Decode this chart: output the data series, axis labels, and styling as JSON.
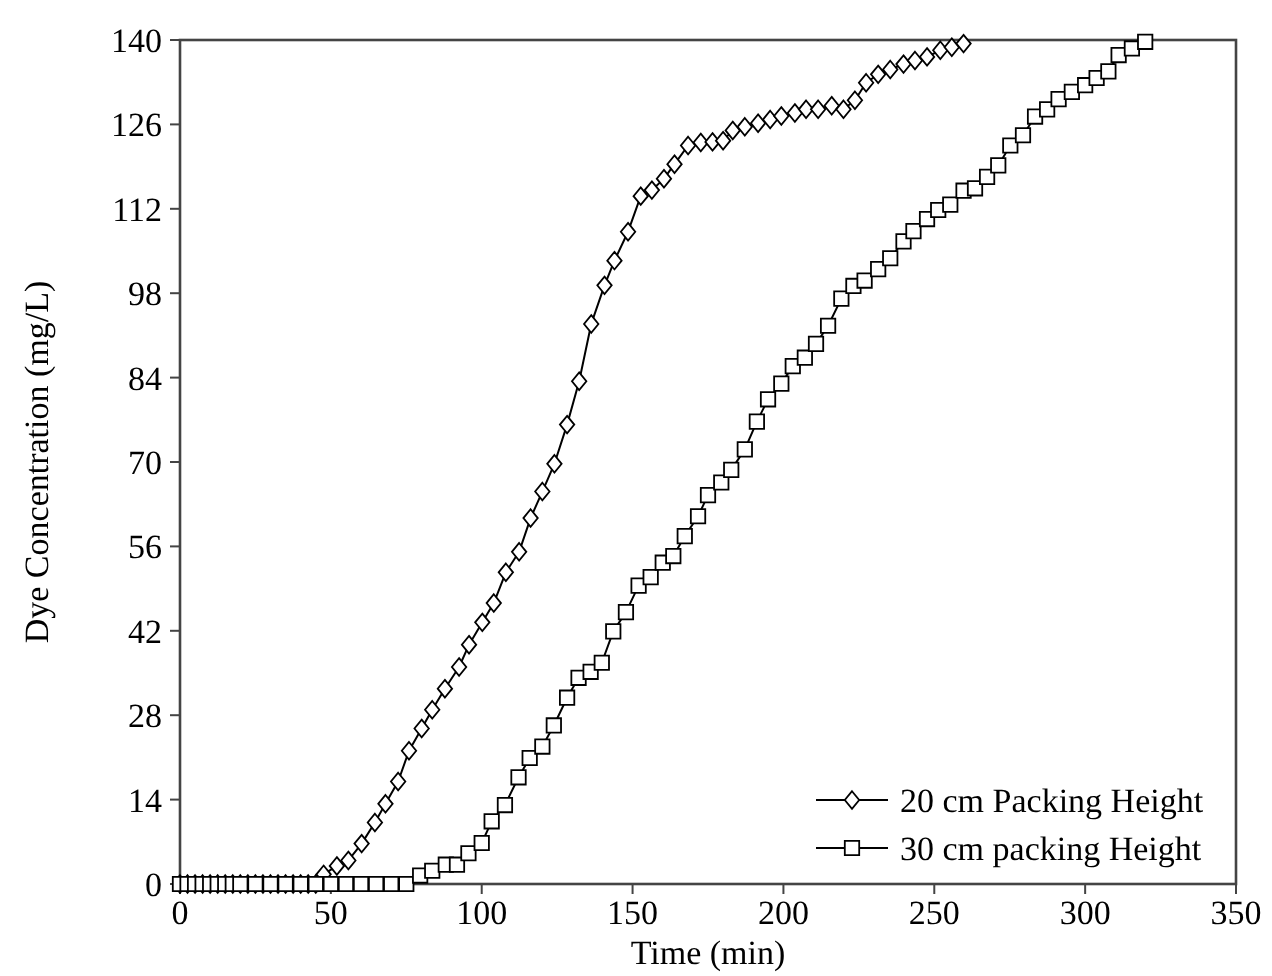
{
  "chart_data": {
    "type": "line",
    "xlabel": "Time (min)",
    "ylabel": "Dye Concentration (mg/L)",
    "xlim": [
      0,
      350
    ],
    "xticks": [
      0,
      50,
      100,
      150,
      200,
      250,
      300,
      350
    ],
    "ylim": [
      0,
      140
    ],
    "yticks": [
      0,
      14,
      28,
      42,
      56,
      70,
      84,
      98,
      112,
      126,
      140
    ],
    "grid": false,
    "legend": "bottom right",
    "line_style": "solid",
    "series": [
      {
        "name": "20 cm Packing Height",
        "color": "#000000",
        "marker": "diamond",
        "x": [
          0,
          2.5,
          5,
          7.5,
          10,
          12.5,
          15,
          17.5,
          20,
          22.5,
          25,
          27.5,
          30,
          32.5,
          35,
          37.5,
          40,
          42.5,
          45,
          47.6,
          52,
          55.8,
          60.2,
          64.6,
          68.1,
          72.3,
          75.9,
          80.1,
          83.6,
          87.8,
          92.5,
          95.8,
          100.2,
          104,
          108,
          112.4,
          116.2,
          120.1,
          124.1,
          128.3,
          132.3,
          136.3,
          140.7,
          144,
          148.5,
          152.7,
          156.4,
          160.4,
          163.9,
          168.4,
          172.6,
          176.5,
          180,
          183.2,
          187.2,
          191.6,
          195.6,
          199.3,
          203.8,
          207.5,
          211.5,
          216,
          219.9,
          223.7,
          227.4,
          231.4,
          235.4,
          239.8,
          243.6,
          247.6,
          252,
          255.8,
          259.7
        ],
        "values": [
          0,
          0,
          0,
          0,
          0,
          0,
          0,
          0,
          0,
          0,
          0,
          0,
          0,
          0,
          0,
          0,
          0,
          0,
          0,
          1.6,
          3,
          3.9,
          6.7,
          10.2,
          13.3,
          17,
          22.1,
          25.8,
          28.9,
          32.4,
          36,
          39.7,
          43.4,
          46.6,
          51.7,
          55.1,
          60.7,
          65.1,
          69.7,
          76.2,
          83.4,
          92.9,
          99.3,
          103.4,
          108.2,
          114.1,
          115.1,
          117,
          119.4,
          122.5,
          123,
          123.1,
          123.3,
          125,
          125.6,
          126.2,
          126.8,
          127.4,
          127.9,
          128.5,
          128.5,
          129.1,
          128.5,
          130,
          132.9,
          134.3,
          135.1,
          136,
          136.6,
          137.2,
          138.3,
          138.8,
          139.4
        ]
      },
      {
        "name": "30 cm packing Height",
        "color": "#000000",
        "marker": "square",
        "x": [
          0,
          2.5,
          5,
          7.5,
          10,
          12.5,
          15,
          17.5,
          20,
          25,
          30,
          35,
          40,
          45,
          50,
          55,
          60,
          65,
          70,
          75,
          79.6,
          83.6,
          88.1,
          91.8,
          95.6,
          100,
          103.3,
          107.7,
          112.2,
          115.9,
          120.1,
          123.9,
          128.3,
          132.1,
          136.1,
          139.8,
          143.6,
          147.8,
          152,
          156,
          160,
          163.5,
          167.3,
          171.7,
          175,
          179.4,
          182.7,
          187.2,
          191.2,
          194.9,
          199.3,
          203.1,
          207.1,
          210.8,
          214.8,
          219.2,
          223.2,
          226.9,
          231.4,
          235.4,
          239.8,
          243.1,
          247.6,
          251.3,
          255.3,
          259.7,
          263.5,
          267.5,
          271.2,
          275.2,
          279.4,
          283.4,
          287.4,
          291.2,
          295.6,
          300,
          303.8,
          307.7,
          311.1,
          315.5,
          319.9
        ],
        "values": [
          0,
          0,
          0,
          0,
          0,
          0,
          0,
          0,
          0,
          0,
          0,
          0,
          0,
          0,
          0,
          0,
          0,
          0,
          0,
          0,
          1.4,
          2.2,
          3.2,
          3.2,
          5.1,
          6.8,
          10.4,
          13.1,
          17.7,
          20.9,
          22.8,
          26.3,
          30.9,
          34.2,
          35.2,
          36.7,
          41.9,
          45.1,
          49.5,
          50.9,
          53.3,
          54.4,
          57.7,
          61,
          64.5,
          66.6,
          68.7,
          72.1,
          76.7,
          80.4,
          83,
          85.9,
          87.3,
          89.6,
          92.6,
          97.1,
          99.2,
          100.1,
          102,
          103.8,
          106.6,
          108.3,
          110.3,
          111.8,
          112.7,
          115,
          115.4,
          117.3,
          119.2,
          122.5,
          124.2,
          127.3,
          128.5,
          130.2,
          131.4,
          132.5,
          133.7,
          134.8,
          137.5,
          138.6,
          139.7
        ]
      }
    ]
  }
}
